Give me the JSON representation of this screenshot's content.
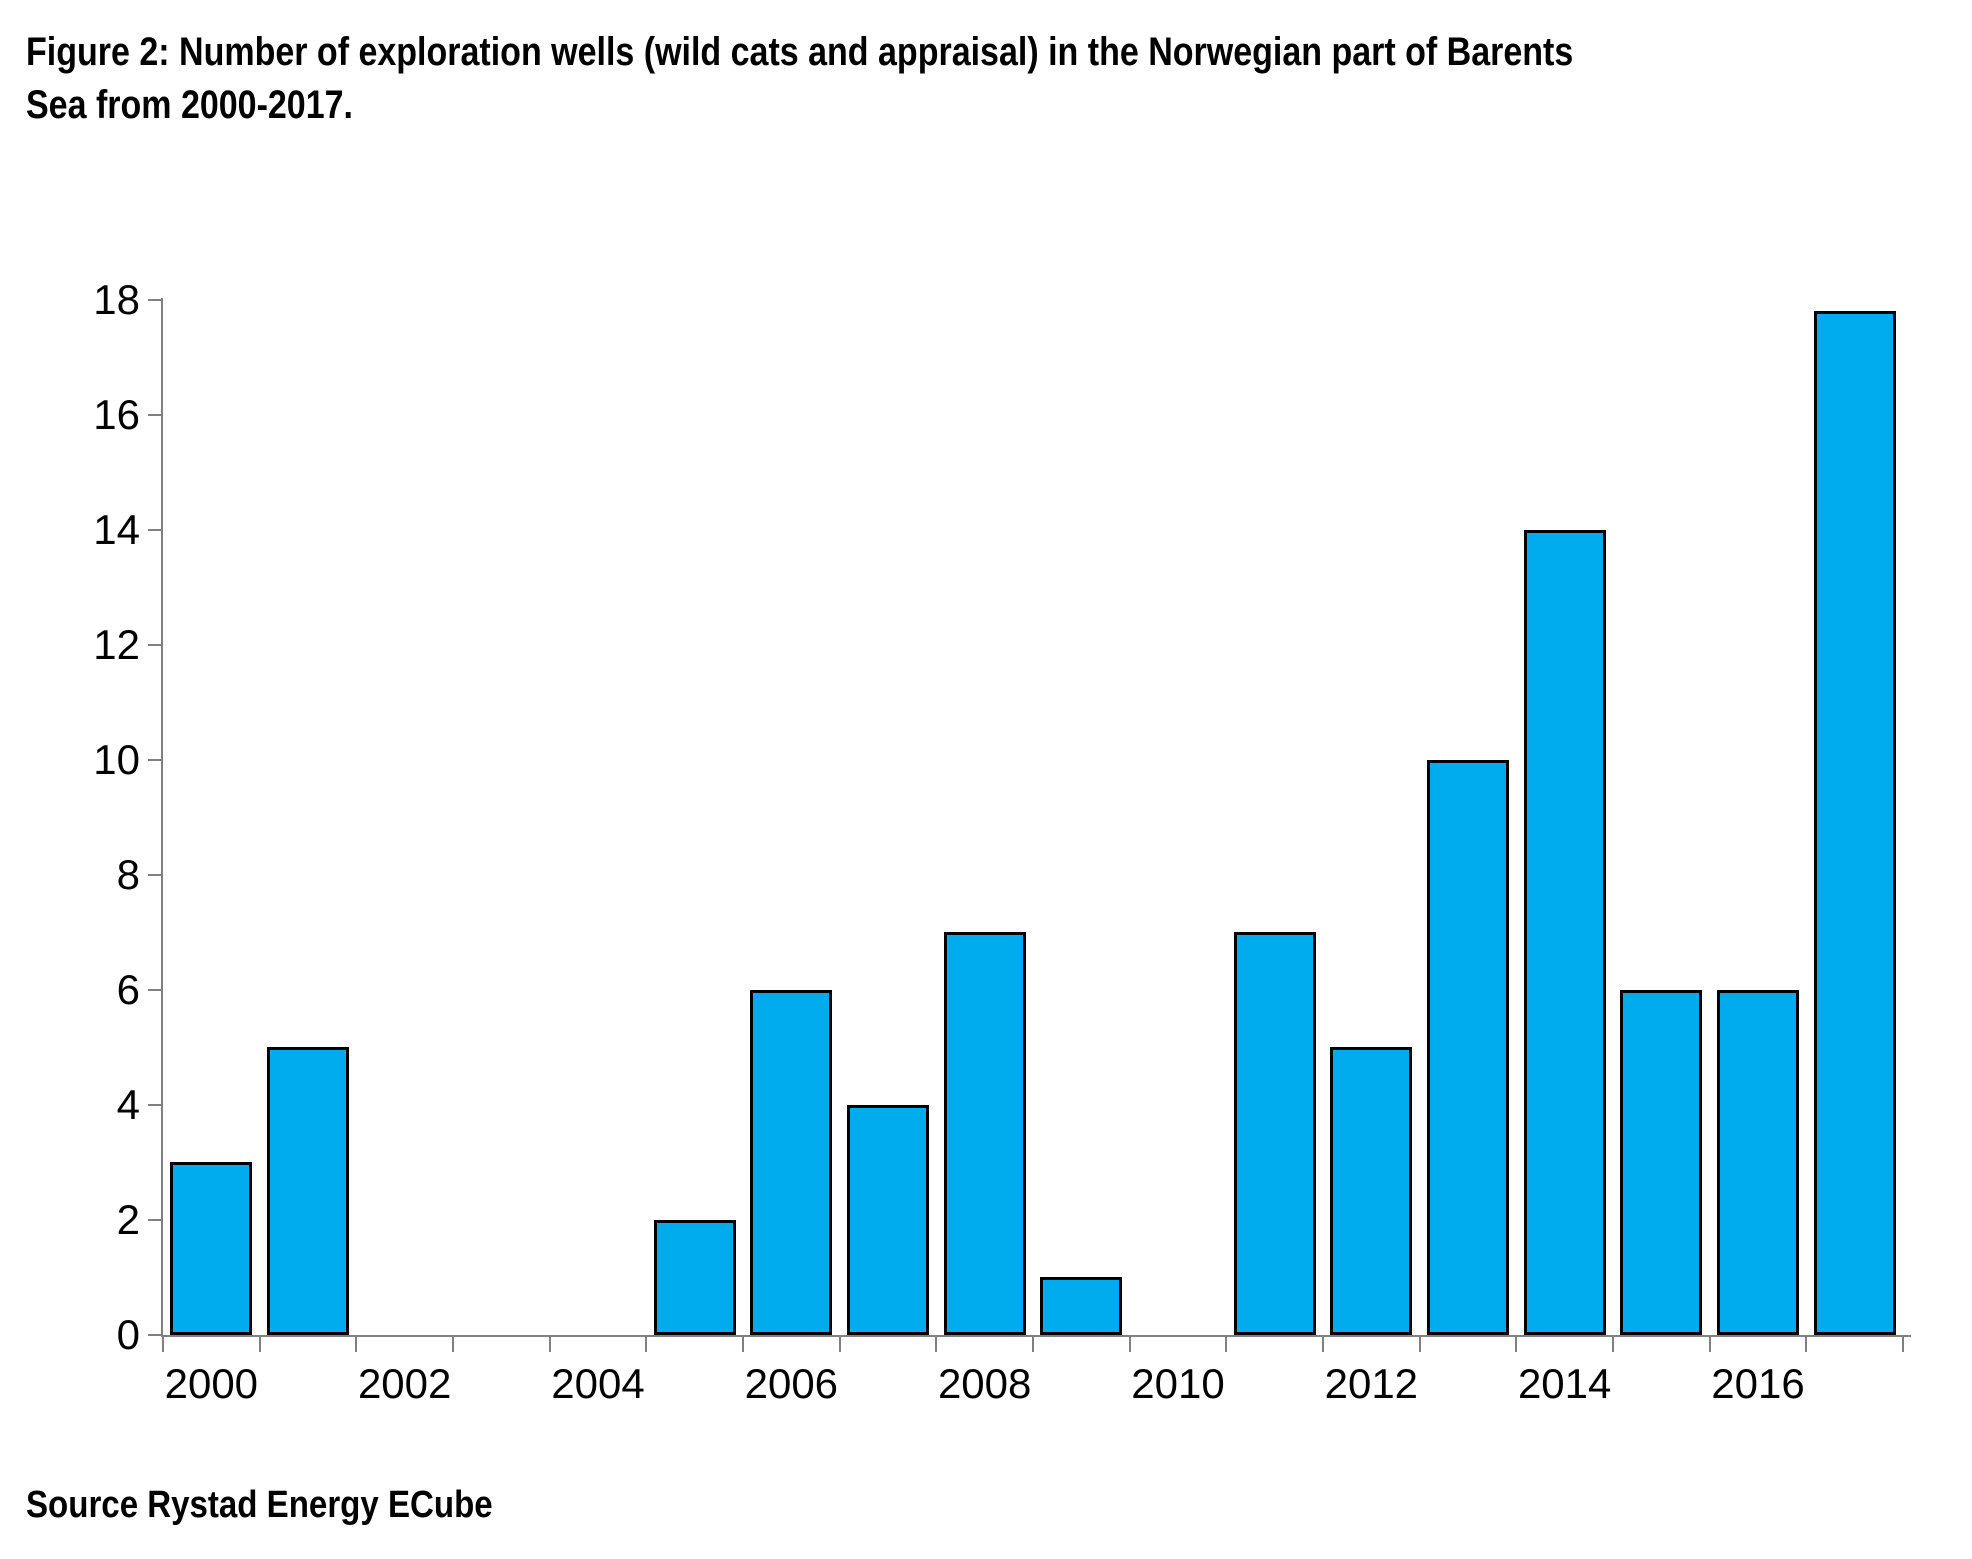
{
  "title": {
    "lines": [
      "Figure 2: Number of exploration wells (wild cats and appraisal) in the Norwegian part of Barents",
      "Sea from 2000-2017."
    ],
    "full_text": "Figure 2: Number of exploration wells (wild cats and appraisal) in the Norwegian part of Barents Sea from 2000-2017."
  },
  "source": {
    "text": "Source Rystad Energy ECube"
  },
  "chart_data": {
    "type": "bar",
    "categories": [
      "2000",
      "2001",
      "2002",
      "2003",
      "2004",
      "2005",
      "2006",
      "2007",
      "2008",
      "2009",
      "2010",
      "2011",
      "2012",
      "2013",
      "2014",
      "2015",
      "2016",
      "2017"
    ],
    "values": [
      3,
      5,
      0,
      0,
      0,
      2,
      6,
      4,
      7,
      1,
      0,
      7,
      5,
      10,
      14,
      6,
      6,
      17.8
    ],
    "title": "Figure 2: Number of exploration wells (wild cats and appraisal) in the Norwegian part of Barents Sea from 2000-2017.",
    "xlabel": "",
    "ylabel": "",
    "ylim": [
      0,
      18
    ],
    "yticks": [
      0,
      2,
      4,
      6,
      8,
      10,
      12,
      14,
      16,
      18
    ],
    "xtick_labels": [
      "2000",
      "2002",
      "2004",
      "2006",
      "2008",
      "2010",
      "2012",
      "2014",
      "2016"
    ],
    "grid": false,
    "legend": "none",
    "bar_fill_color": "#00ACEE",
    "bar_border_color": "#000000",
    "axis_color": "#808080",
    "text_color": "#000000"
  }
}
